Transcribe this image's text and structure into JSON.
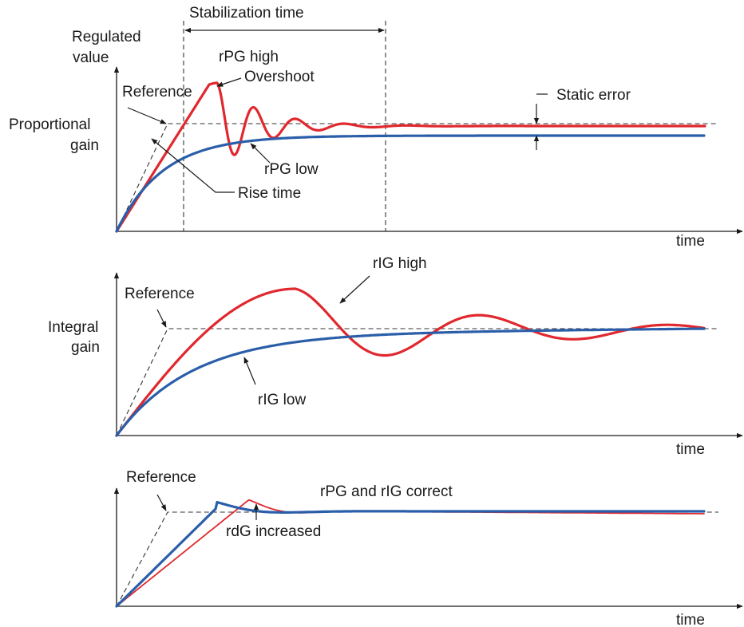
{
  "colors": {
    "high_response": "#e0282e",
    "low_response": "#2a5ea9",
    "axis": "#1a1a1a",
    "reference_line": "#333333"
  },
  "panels": [
    {
      "id": "proportional",
      "y_label_lines": [
        "Regulated",
        "value"
      ],
      "gain_label_lines": [
        "Proportional",
        "gain"
      ],
      "x_label": "time",
      "reference_label": "Reference",
      "annotations": {
        "stabilization_time": "Stabilization time",
        "high_curve": "rPG high",
        "overshoot": "Overshoot",
        "static_error": "Static error",
        "low_curve": "rPG low",
        "rise_time": "Rise time"
      }
    },
    {
      "id": "integral",
      "gain_label_lines": [
        "Integral",
        "gain"
      ],
      "x_label": "time",
      "reference_label": "Reference",
      "annotations": {
        "high_curve": "rIG high",
        "low_curve": "rIG low"
      }
    },
    {
      "id": "derivative",
      "x_label": "time",
      "reference_label": "Reference",
      "annotations": {
        "correct": "rPG and rIG correct",
        "derivative": "rdG increased"
      }
    }
  ]
}
